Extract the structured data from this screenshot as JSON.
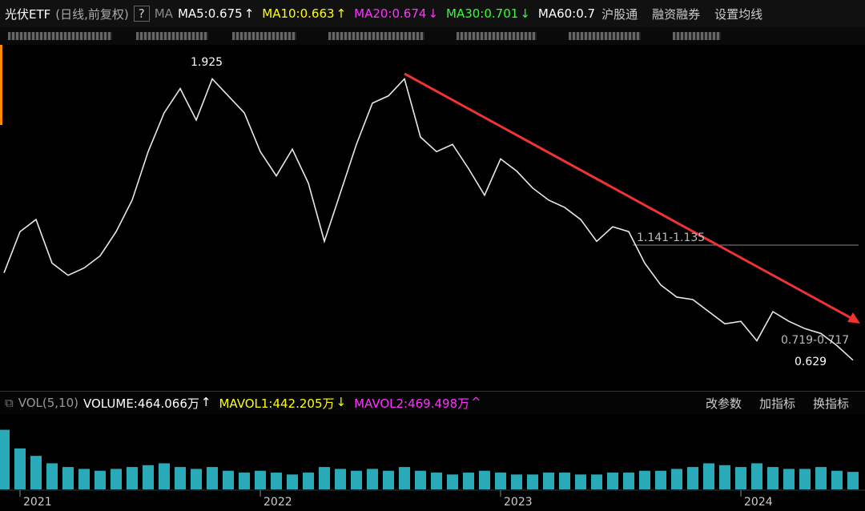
{
  "header": {
    "title": "光伏ETF",
    "period": "(日线,前复权)",
    "help": "?",
    "ma": "MA",
    "ma_items": [
      {
        "label": "MA5:0.675",
        "arrow": "↑",
        "color": "#ffffff"
      },
      {
        "label": "MA10:0.663",
        "arrow": "↑",
        "color": "#ffff00"
      },
      {
        "label": "MA20:0.674",
        "arrow": "↓",
        "color": "#ff33ff"
      },
      {
        "label": "MA30:0.701",
        "arrow": "↓",
        "color": "#33ff33"
      },
      {
        "label": "MA60:0.7",
        "arrow": "",
        "color": "#ffffff"
      }
    ],
    "links": [
      "沪股通",
      "融资融券",
      "设置均线"
    ]
  },
  "volume_header": {
    "title": "VOL(5,10)",
    "items": [
      {
        "label": "VOLUME:464.066万",
        "arrow": "↑",
        "color": "#ffffff"
      },
      {
        "label": "MAVOL1:442.205万",
        "arrow": "↓",
        "color": "#ffff00"
      },
      {
        "label": "MAVOL2:469.498万",
        "arrow": "^",
        "color": "#ff33ff"
      }
    ],
    "links": [
      "改参数",
      "加指标",
      "换指标"
    ]
  },
  "annotations": [
    "1.925",
    "1.141-1.135",
    "0.719-0.717",
    "0.629"
  ],
  "chart_data": {
    "type": "line",
    "color": "#e8e8e8",
    "categories": [
      null,
      "2021",
      null,
      null,
      null,
      null,
      null,
      null,
      null,
      null,
      null,
      null,
      null,
      null,
      null,
      null,
      "2022",
      null,
      null,
      null,
      null,
      null,
      null,
      null,
      null,
      null,
      null,
      null,
      null,
      null,
      null,
      "2023",
      null,
      null,
      null,
      null,
      null,
      null,
      null,
      null,
      null,
      null,
      null,
      null,
      null,
      null,
      "2024",
      null,
      null,
      null,
      null,
      null,
      null,
      null
    ],
    "values": [
      1.03,
      1.2,
      1.25,
      1.07,
      1.02,
      1.05,
      1.1,
      1.2,
      1.33,
      1.53,
      1.69,
      1.79,
      1.66,
      1.83,
      1.76,
      1.69,
      1.53,
      1.43,
      1.54,
      1.4,
      1.16,
      1.36,
      1.56,
      1.73,
      1.76,
      1.83,
      1.59,
      1.53,
      1.56,
      1.46,
      1.35,
      1.5,
      1.45,
      1.38,
      1.33,
      1.3,
      1.25,
      1.16,
      1.22,
      1.2,
      1.07,
      0.98,
      0.93,
      0.92,
      0.87,
      0.82,
      0.83,
      0.75,
      0.87,
      0.83,
      0.8,
      0.78,
      0.73,
      0.67
    ],
    "ylim": [
      0.55,
      2.0
    ],
    "volume": {
      "color": "#30c8d8",
      "ylim": [
        0,
        2000
      ],
      "values": [
        1600,
        1100,
        900,
        700,
        600,
        550,
        500,
        550,
        600,
        650,
        700,
        600,
        550,
        600,
        500,
        450,
        500,
        450,
        400,
        450,
        600,
        550,
        500,
        550,
        500,
        600,
        500,
        450,
        400,
        450,
        500,
        450,
        400,
        400,
        450,
        450,
        400,
        400,
        450,
        450,
        500,
        500,
        550,
        600,
        700,
        650,
        600,
        700,
        600,
        550,
        550,
        600,
        500,
        470
      ]
    }
  }
}
